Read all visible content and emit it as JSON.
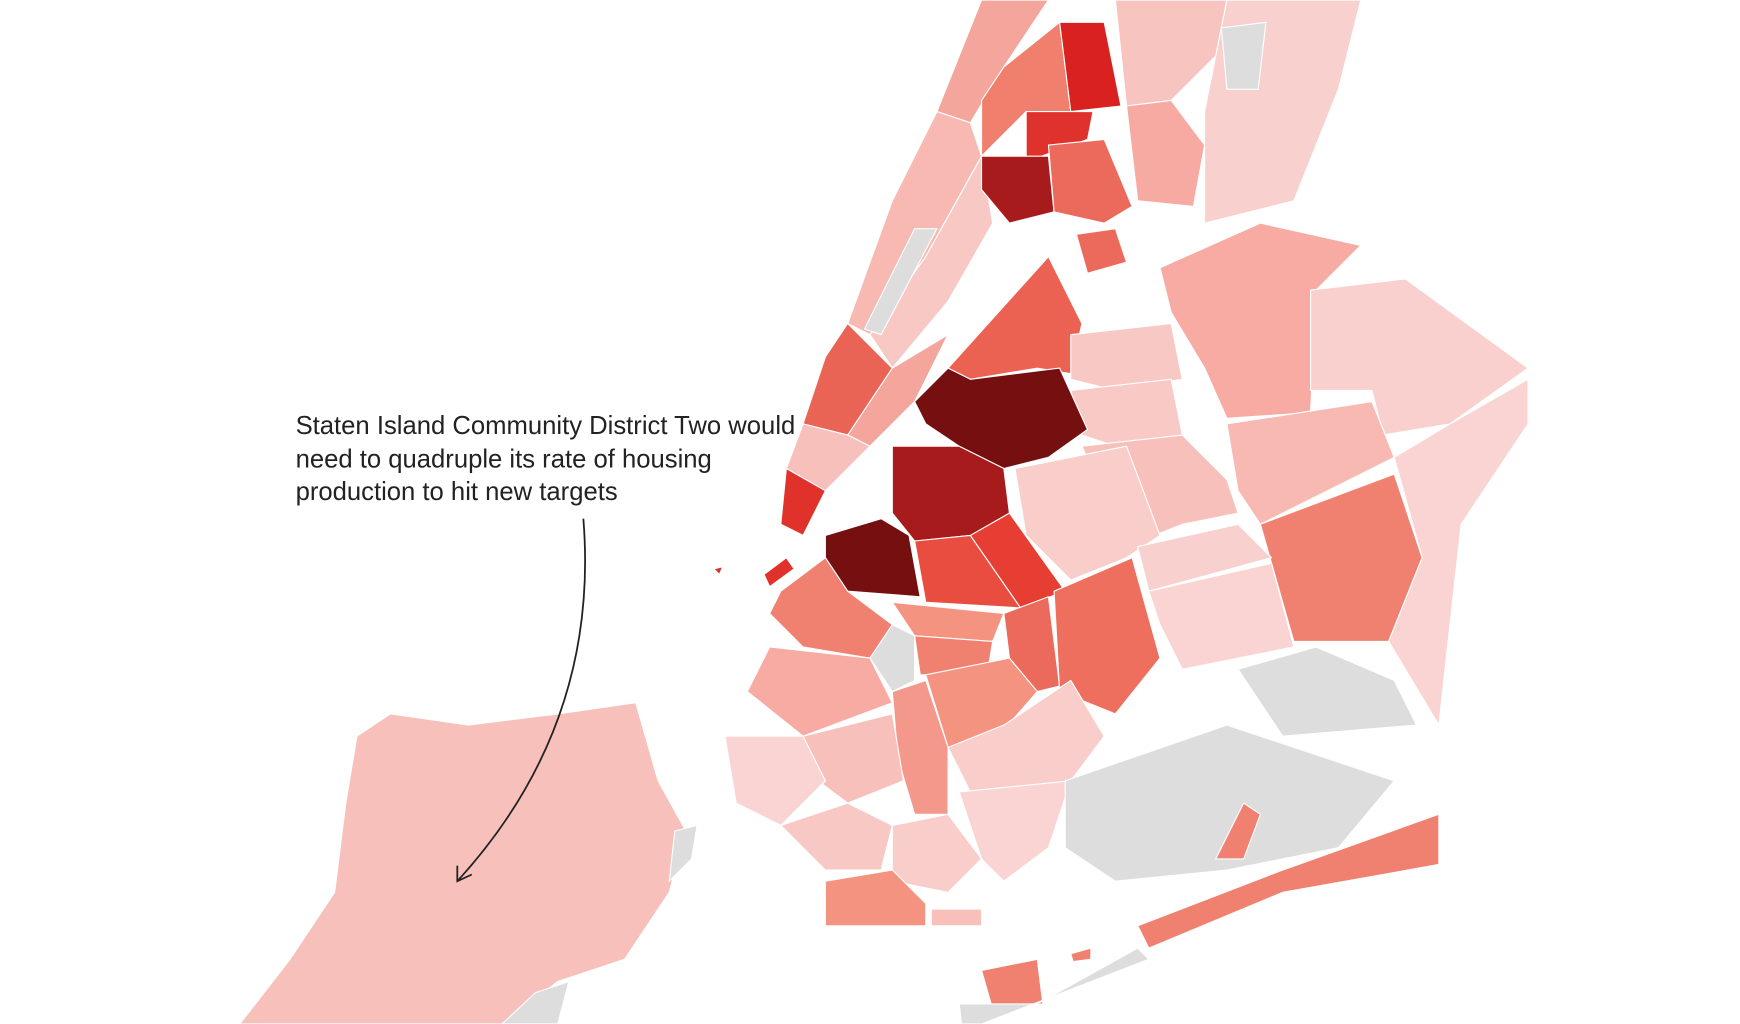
{
  "annotation": {
    "lines": [
      "Staten Island Community District Two would",
      "need to quadruple its rate of housing",
      "production to hit new targets"
    ]
  }
}
